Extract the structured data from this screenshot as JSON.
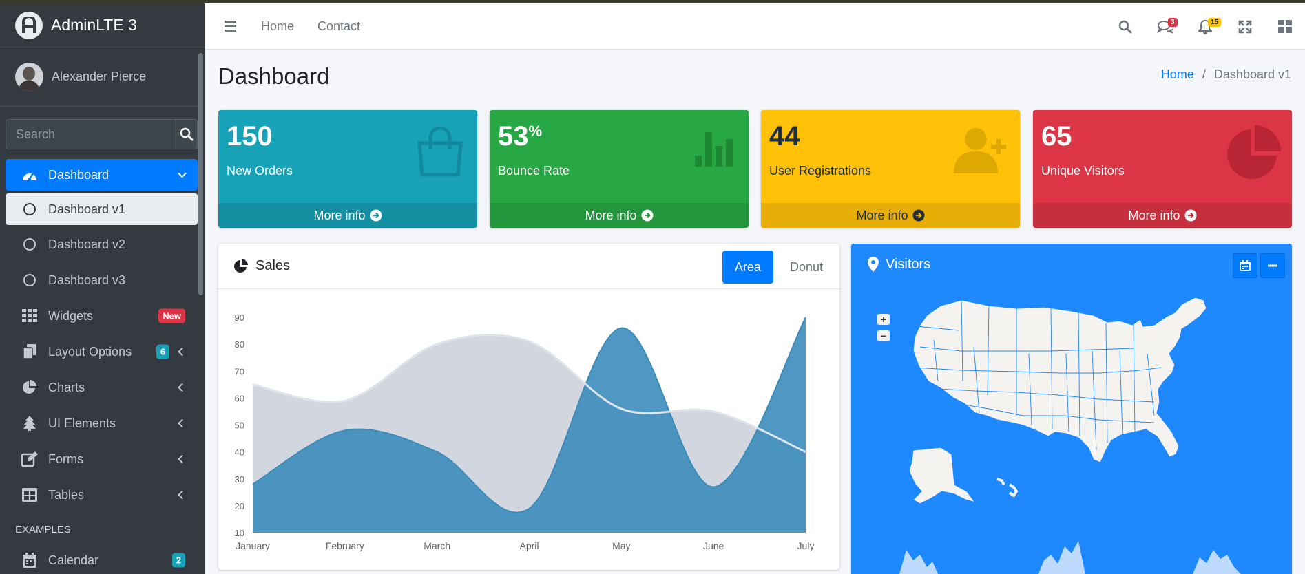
{
  "brand": {
    "name": "AdminLTE 3"
  },
  "user": {
    "name": "Alexander Pierce"
  },
  "search": {
    "placeholder": "Search"
  },
  "sidebar": {
    "items": [
      {
        "label": "Dashboard",
        "icon": "tachometer-icon",
        "active": true
      },
      {
        "label": "Dashboard v1",
        "icon": "circle-icon",
        "sub": true,
        "current": true
      },
      {
        "label": "Dashboard v2",
        "icon": "circle-icon",
        "sub": true
      },
      {
        "label": "Dashboard v3",
        "icon": "circle-icon",
        "sub": true
      },
      {
        "label": "Widgets",
        "icon": "th-icon",
        "badge": "New",
        "badge_color": "#dc3545"
      },
      {
        "label": "Layout Options",
        "icon": "copy-icon",
        "badge": "6",
        "badge_color": "#17a2b8"
      },
      {
        "label": "Charts",
        "icon": "chart-pie-icon"
      },
      {
        "label": "UI Elements",
        "icon": "tree-icon"
      },
      {
        "label": "Forms",
        "icon": "edit-icon"
      },
      {
        "label": "Tables",
        "icon": "table-icon"
      }
    ],
    "header": "EXAMPLES",
    "examples": [
      {
        "label": "Calendar",
        "icon": "calendar-icon",
        "badge": "2",
        "badge_color": "#17a2b8"
      }
    ]
  },
  "navbar": {
    "links": [
      "Home",
      "Contact"
    ],
    "messages_count": "3",
    "notifications_count": "15"
  },
  "page": {
    "title": "Dashboard",
    "breadcrumb": [
      "Home",
      "Dashboard v1"
    ]
  },
  "small_boxes": [
    {
      "value": "150",
      "suffix": "",
      "label": "New Orders",
      "footer": "More info",
      "color": "#17a2b8",
      "icon": "shopping-bag-icon"
    },
    {
      "value": "53",
      "suffix": "%",
      "label": "Bounce Rate",
      "footer": "More info",
      "color": "#28a745",
      "icon": "stats-bars-icon"
    },
    {
      "value": "44",
      "suffix": "",
      "label": "User Registrations",
      "footer": "More info",
      "color": "#ffc107",
      "icon": "person-add-icon"
    },
    {
      "value": "65",
      "suffix": "",
      "label": "Unique Visitors",
      "footer": "More info",
      "color": "#dc3545",
      "icon": "pie-graph-icon"
    }
  ],
  "sales": {
    "title": "Sales",
    "tabs": [
      "Area",
      "Donut"
    ],
    "active_tab": "Area"
  },
  "visitors": {
    "title": "Visitors",
    "zoom_in": "+",
    "zoom_out": "−"
  },
  "chart_data": {
    "type": "area",
    "title": "",
    "xlabel": "",
    "ylabel": "",
    "categories": [
      "January",
      "February",
      "March",
      "April",
      "May",
      "June",
      "July"
    ],
    "ylim": [
      10,
      90
    ],
    "yticks": [
      10,
      20,
      30,
      40,
      50,
      60,
      70,
      80,
      90
    ],
    "series": [
      {
        "name": "",
        "values": [
          65,
          59,
          80,
          81,
          56,
          55,
          40
        ],
        "color": "#d2d6de"
      },
      {
        "name": "",
        "values": [
          28,
          48,
          40,
          19,
          86,
          27,
          90
        ],
        "color": "#3c8dbc"
      }
    ],
    "grid": false
  }
}
